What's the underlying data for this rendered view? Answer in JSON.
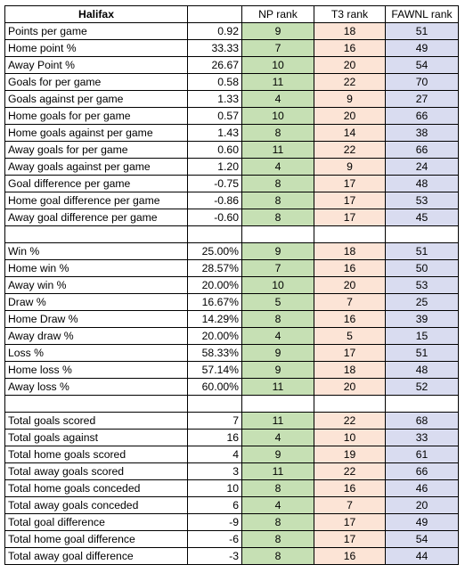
{
  "header": {
    "team": "Halifax",
    "np_rank": "NP rank",
    "t3_rank": "T3 rank",
    "fawnl_rank": "FAWNL rank"
  },
  "sections": [
    [
      {
        "label": "Points per game",
        "value": "0.92",
        "np": "9",
        "t3": "18",
        "fawnl": "51"
      },
      {
        "label": "Home point %",
        "value": "33.33",
        "np": "7",
        "t3": "16",
        "fawnl": "49"
      },
      {
        "label": "Away Point %",
        "value": "26.67",
        "np": "10",
        "t3": "20",
        "fawnl": "54"
      },
      {
        "label": "Goals for per game",
        "value": "0.58",
        "np": "11",
        "t3": "22",
        "fawnl": "70"
      },
      {
        "label": "Goals against per game",
        "value": "1.33",
        "np": "4",
        "t3": "9",
        "fawnl": "27"
      },
      {
        "label": "Home goals for per game",
        "value": "0.57",
        "np": "10",
        "t3": "20",
        "fawnl": "66"
      },
      {
        "label": "Home goals against per game",
        "value": "1.43",
        "np": "8",
        "t3": "14",
        "fawnl": "38"
      },
      {
        "label": "Away goals for per game",
        "value": "0.60",
        "np": "11",
        "t3": "22",
        "fawnl": "66"
      },
      {
        "label": "Away goals against per game",
        "value": "1.20",
        "np": "4",
        "t3": "9",
        "fawnl": "24"
      },
      {
        "label": "Goal difference per game",
        "value": "-0.75",
        "np": "8",
        "t3": "17",
        "fawnl": "48"
      },
      {
        "label": "Home goal difference per game",
        "value": "-0.86",
        "np": "8",
        "t3": "17",
        "fawnl": "53"
      },
      {
        "label": "Away goal difference per game",
        "value": "-0.60",
        "np": "8",
        "t3": "17",
        "fawnl": "45"
      }
    ],
    [
      {
        "label": "Win %",
        "value": "25.00%",
        "np": "9",
        "t3": "18",
        "fawnl": "51"
      },
      {
        "label": "Home win %",
        "value": "28.57%",
        "np": "7",
        "t3": "16",
        "fawnl": "50"
      },
      {
        "label": "Away win %",
        "value": "20.00%",
        "np": "10",
        "t3": "20",
        "fawnl": "53"
      },
      {
        "label": "Draw %",
        "value": "16.67%",
        "np": "5",
        "t3": "7",
        "fawnl": "25"
      },
      {
        "label": "Home Draw %",
        "value": "14.29%",
        "np": "8",
        "t3": "16",
        "fawnl": "39"
      },
      {
        "label": "Away draw %",
        "value": "20.00%",
        "np": "4",
        "t3": "5",
        "fawnl": "15"
      },
      {
        "label": "Loss %",
        "value": "58.33%",
        "np": "9",
        "t3": "17",
        "fawnl": "51"
      },
      {
        "label": "Home loss %",
        "value": "57.14%",
        "np": "9",
        "t3": "18",
        "fawnl": "48"
      },
      {
        "label": "Away loss %",
        "value": "60.00%",
        "np": "11",
        "t3": "20",
        "fawnl": "52"
      }
    ],
    [
      {
        "label": "Total goals scored",
        "value": "7",
        "np": "11",
        "t3": "22",
        "fawnl": "68"
      },
      {
        "label": "Total goals against",
        "value": "16",
        "np": "4",
        "t3": "10",
        "fawnl": "33"
      },
      {
        "label": "Total home goals scored",
        "value": "4",
        "np": "9",
        "t3": "19",
        "fawnl": "61"
      },
      {
        "label": "Total away goals scored",
        "value": "3",
        "np": "11",
        "t3": "22",
        "fawnl": "66"
      },
      {
        "label": "Total home goals conceded",
        "value": "10",
        "np": "8",
        "t3": "16",
        "fawnl": "46"
      },
      {
        "label": "Total away goals conceded",
        "value": "6",
        "np": "4",
        "t3": "7",
        "fawnl": "20"
      },
      {
        "label": "Total goal difference",
        "value": "-9",
        "np": "8",
        "t3": "17",
        "fawnl": "49"
      },
      {
        "label": "Total home goal difference",
        "value": "-6",
        "np": "8",
        "t3": "17",
        "fawnl": "54"
      },
      {
        "label": "Total away goal difference",
        "value": "-3",
        "np": "8",
        "t3": "16",
        "fawnl": "44"
      }
    ]
  ],
  "colors": {
    "np": "#c6e0b4",
    "t3": "#fce4d6",
    "fawnl": "#d9dcf0"
  }
}
